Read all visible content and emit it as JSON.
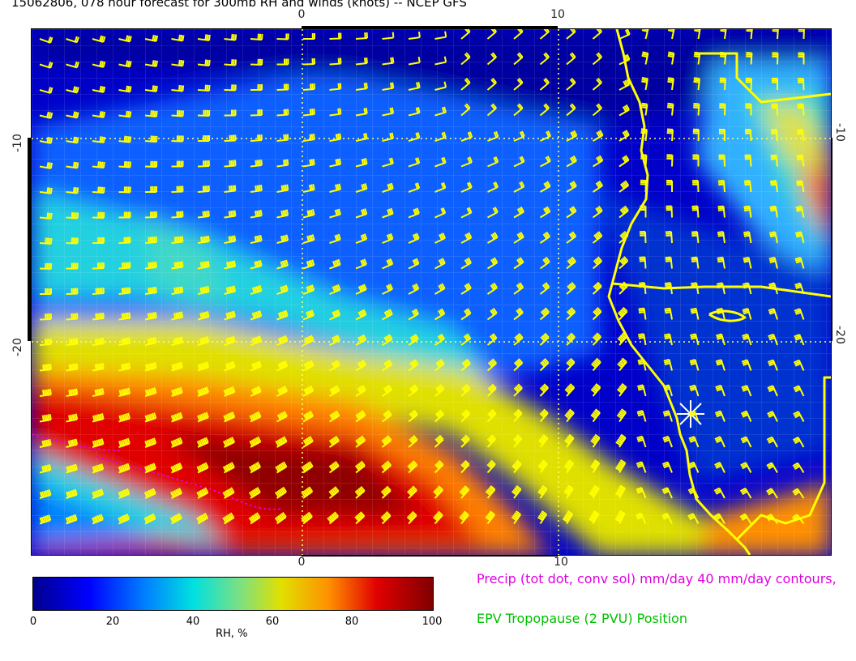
{
  "title": "15062806, 078 hour forecast for 300mb RH and winds (knots) -- NCEP GFS",
  "axes": {
    "top_ticks": [
      "0",
      "10"
    ],
    "bottom_ticks": [
      "0",
      "10"
    ],
    "left_ticks": [
      "-10",
      "-20"
    ],
    "right_ticks": [
      "-10",
      "-20"
    ]
  },
  "colorbar": {
    "ticks": [
      "0",
      "20",
      "40",
      "60",
      "80",
      "100"
    ],
    "label": "RH, %",
    "colors": [
      "#00008f",
      "#0000ff",
      "#0080ff",
      "#00e0e0",
      "#7fe080",
      "#e0e000",
      "#ff9000",
      "#e00000",
      "#800000"
    ]
  },
  "notes": {
    "precip": "Precip (tot dot, conv sol) mm/day 40 mm/day contours,",
    "epv": "EPV Tropopause (2 PVU) Position"
  },
  "colors": {
    "barb": "#ffff00",
    "coast": "#ffff00",
    "precip": "#e000e0",
    "grid_line": "#ffff66",
    "marker": "#ffffff"
  }
}
